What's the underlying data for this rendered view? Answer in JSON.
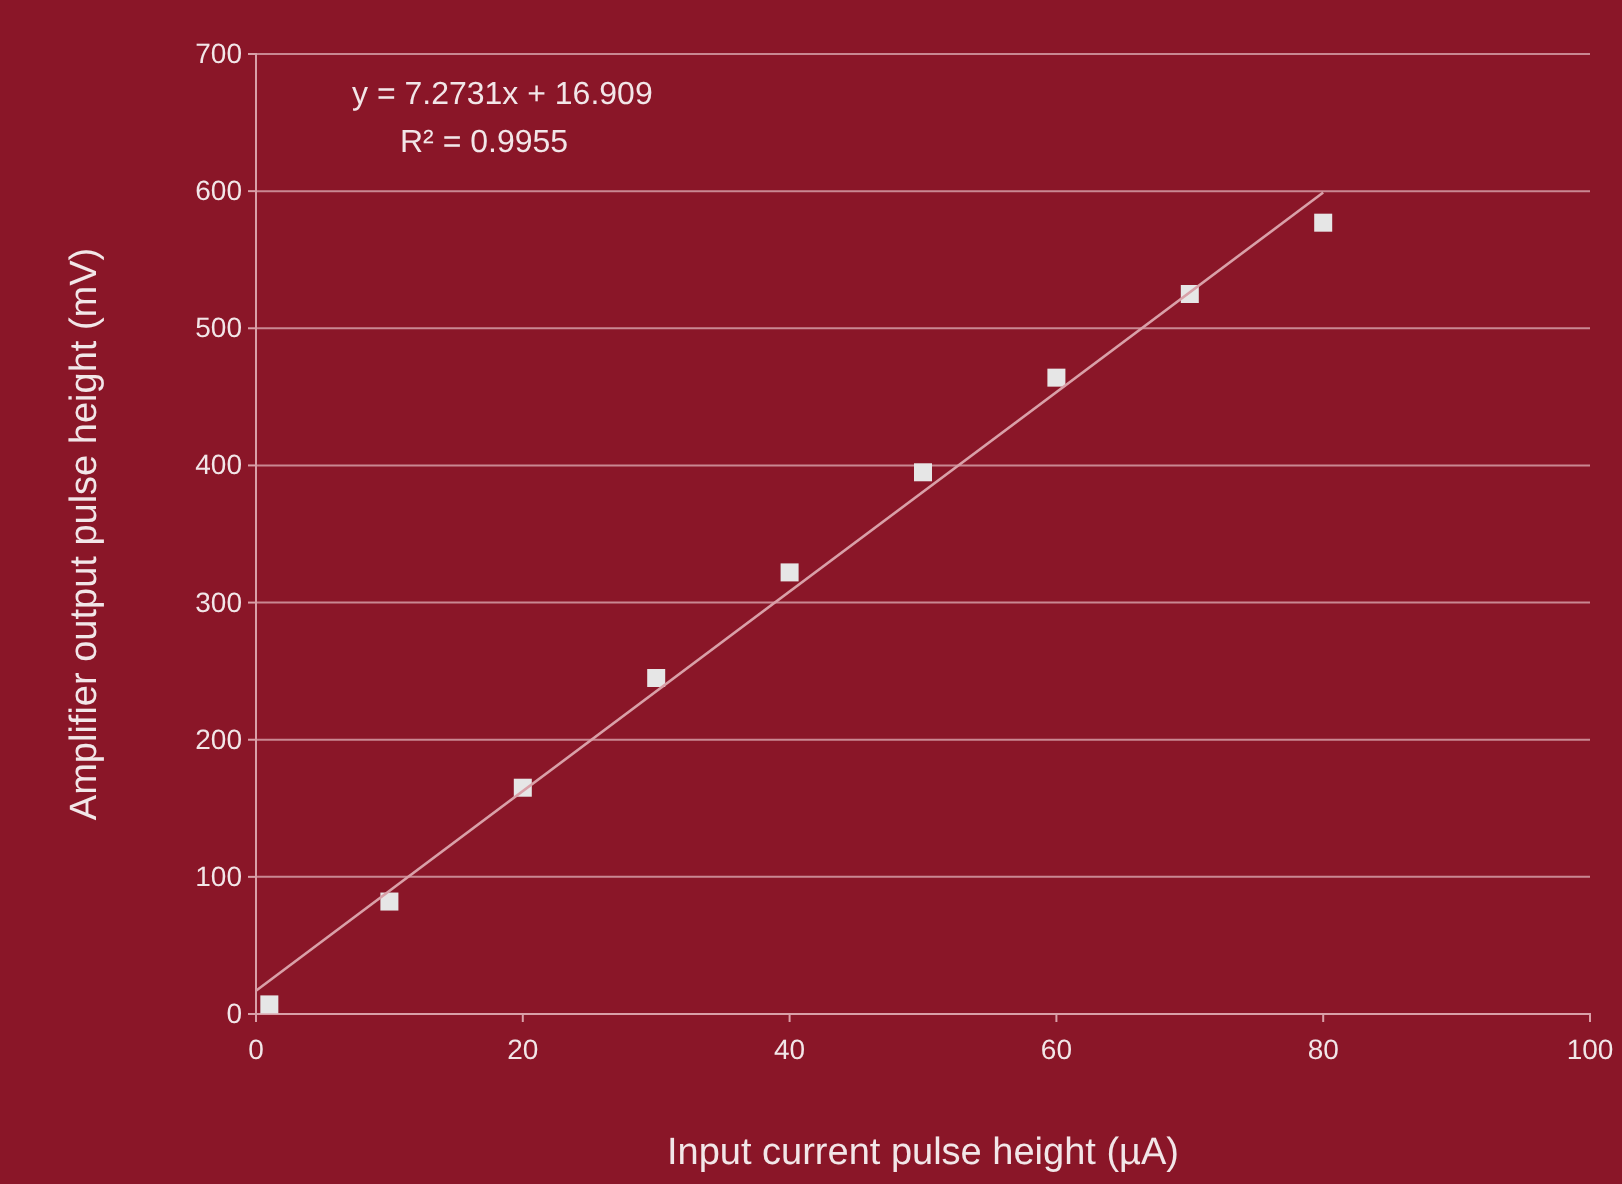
{
  "chart_data": {
    "type": "scatter",
    "xlabel": "Input current pulse height (µA)",
    "ylabel": "Amplifier output pulse height  (mV)",
    "xlim": [
      0,
      100
    ],
    "xticks": [
      0,
      20,
      40,
      60,
      80,
      100
    ],
    "ylim": [
      0,
      700
    ],
    "yticks": [
      0,
      100,
      200,
      300,
      400,
      500,
      600,
      700
    ],
    "grid": "y",
    "marker": "square",
    "annotations": [
      "y = 7.2731x + 16.909",
      "R² = 0.9955"
    ],
    "series": [
      {
        "type": "scatter",
        "color": "#e6e6e6",
        "x": [
          1,
          10,
          20,
          30,
          40,
          50,
          60,
          70,
          80
        ],
        "values": [
          7,
          82,
          165,
          245,
          322,
          395,
          464,
          525,
          577
        ]
      },
      {
        "type": "line",
        "color": "#d9a0a8",
        "line_style": "solid",
        "marker": "none",
        "x": [
          0,
          80
        ],
        "values": [
          17,
          599
        ]
      }
    ]
  }
}
